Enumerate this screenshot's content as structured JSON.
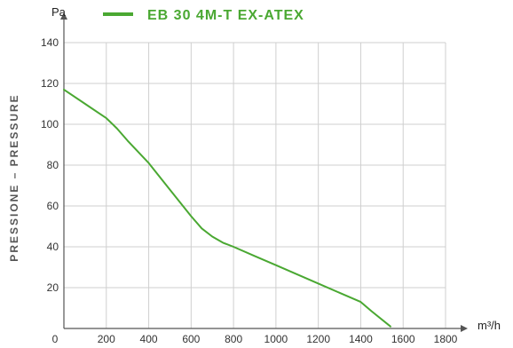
{
  "chart_data": {
    "type": "line",
    "y_unit": "Pa",
    "x_unit": "m³/h",
    "ylabel": "PRESSIONE – PRESSURE",
    "xlim": [
      0,
      1800
    ],
    "ylim": [
      0,
      140
    ],
    "x_ticks": [
      0,
      200,
      400,
      600,
      800,
      1000,
      1200,
      1400,
      1600,
      1800
    ],
    "y_ticks": [
      20,
      40,
      60,
      80,
      100,
      120,
      140
    ],
    "x_tick_labels": [
      "0",
      "200",
      "400",
      "600",
      "800",
      "1000",
      "1200",
      "1400",
      "1600",
      "1800"
    ],
    "y_tick_labels": [
      "20",
      "40",
      "60",
      "80",
      "100",
      "120",
      "140"
    ],
    "grid": true,
    "legend_position": "top",
    "series": [
      {
        "name": "EB 30 4M-T EX-ATEX",
        "color": "#4aa832",
        "x": [
          0,
          100,
          200,
          250,
          300,
          400,
          500,
          600,
          650,
          700,
          750,
          800,
          900,
          1000,
          1100,
          1200,
          1300,
          1400,
          1450,
          1540
        ],
        "y": [
          117,
          110,
          103,
          98,
          92,
          81,
          68,
          55,
          49,
          45,
          42,
          40,
          35.5,
          31,
          26.5,
          22,
          17.5,
          13,
          8.5,
          1
        ]
      }
    ]
  }
}
